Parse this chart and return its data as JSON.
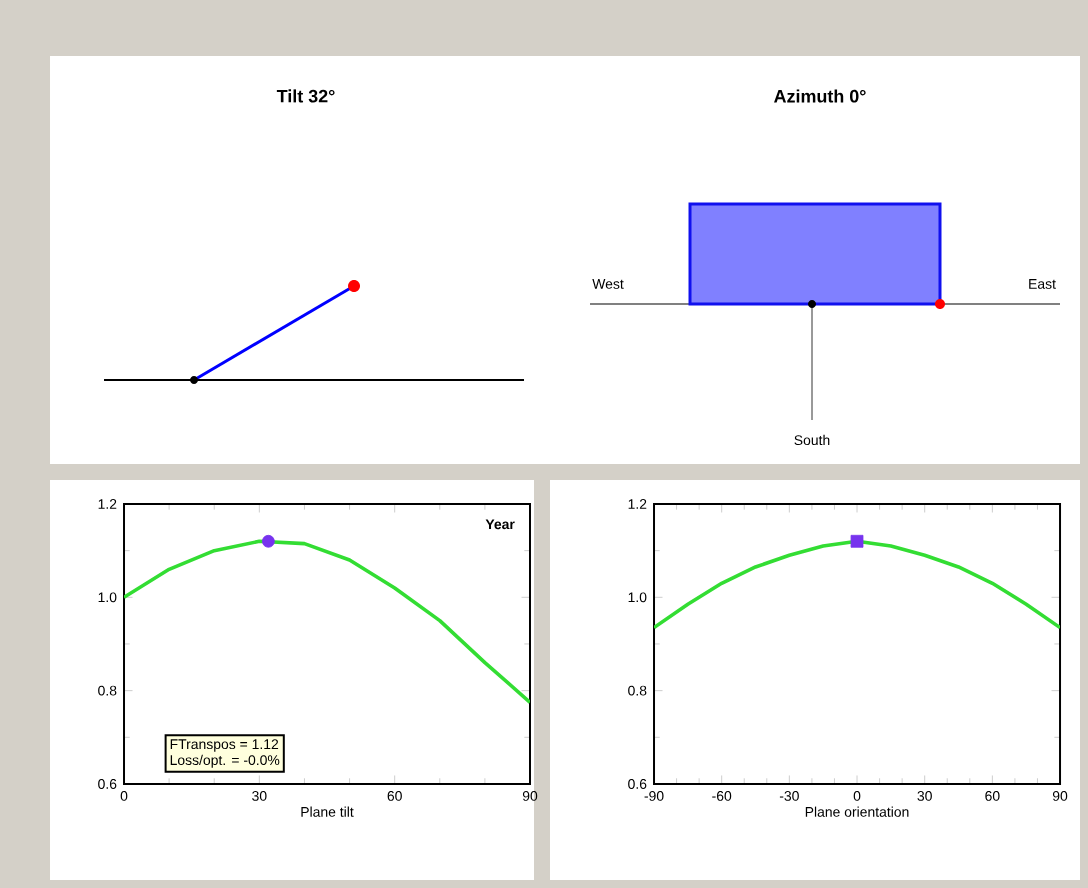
{
  "chart_data": [
    {
      "type": "other",
      "title": "Tilt 32°"
    },
    {
      "type": "other",
      "title": "Azimuth 0°",
      "annotations": [
        "West",
        "East",
        "South"
      ]
    },
    {
      "type": "line",
      "xlabel": "Plane tilt",
      "x": [
        0,
        10,
        20,
        30,
        40,
        50,
        60,
        70,
        80,
        90
      ],
      "series": [
        {
          "color": "#33dd33",
          "values": [
            1.0,
            1.06,
            1.1,
            1.12,
            1.115,
            1.08,
            1.02,
            0.95,
            0.86,
            0.775
          ]
        },
        {
          "type": "scatter",
          "marker": "circle",
          "color": "#7733ee",
          "x": [
            32
          ],
          "values": [
            1.12
          ]
        }
      ],
      "xlim": [
        0,
        90
      ],
      "ylim": [
        0.6,
        1.2
      ],
      "xticks": [
        0,
        30,
        60,
        90
      ],
      "yticks": [
        0.6,
        0.8,
        {
          "value": 1,
          "label": "1.0"
        },
        1.2
      ],
      "annotations": [
        "Year",
        "FTranspos = 1.12",
        "Loss/opt. = -0.0%"
      ]
    },
    {
      "type": "line",
      "xlabel": "Plane orientation",
      "x": [
        -90,
        -75,
        -60,
        -45,
        -30,
        -15,
        0,
        15,
        30,
        45,
        60,
        75,
        90
      ],
      "series": [
        {
          "color": "#33dd33",
          "values": [
            0.935,
            0.985,
            1.03,
            1.065,
            1.09,
            1.11,
            1.12,
            1.11,
            1.09,
            1.065,
            1.03,
            0.985,
            0.935
          ]
        },
        {
          "type": "scatter",
          "marker": "square",
          "color": "#7733ee",
          "x": [
            0
          ],
          "values": [
            1.12
          ]
        }
      ],
      "xlim": [
        -90,
        90
      ],
      "ylim": [
        0.6,
        1.2
      ],
      "xticks": [
        -90,
        -60,
        -30,
        0,
        30,
        60,
        90
      ],
      "yticks": [
        0.6,
        0.8,
        {
          "value": 1,
          "label": "1.0"
        },
        1.2
      ]
    }
  ]
}
